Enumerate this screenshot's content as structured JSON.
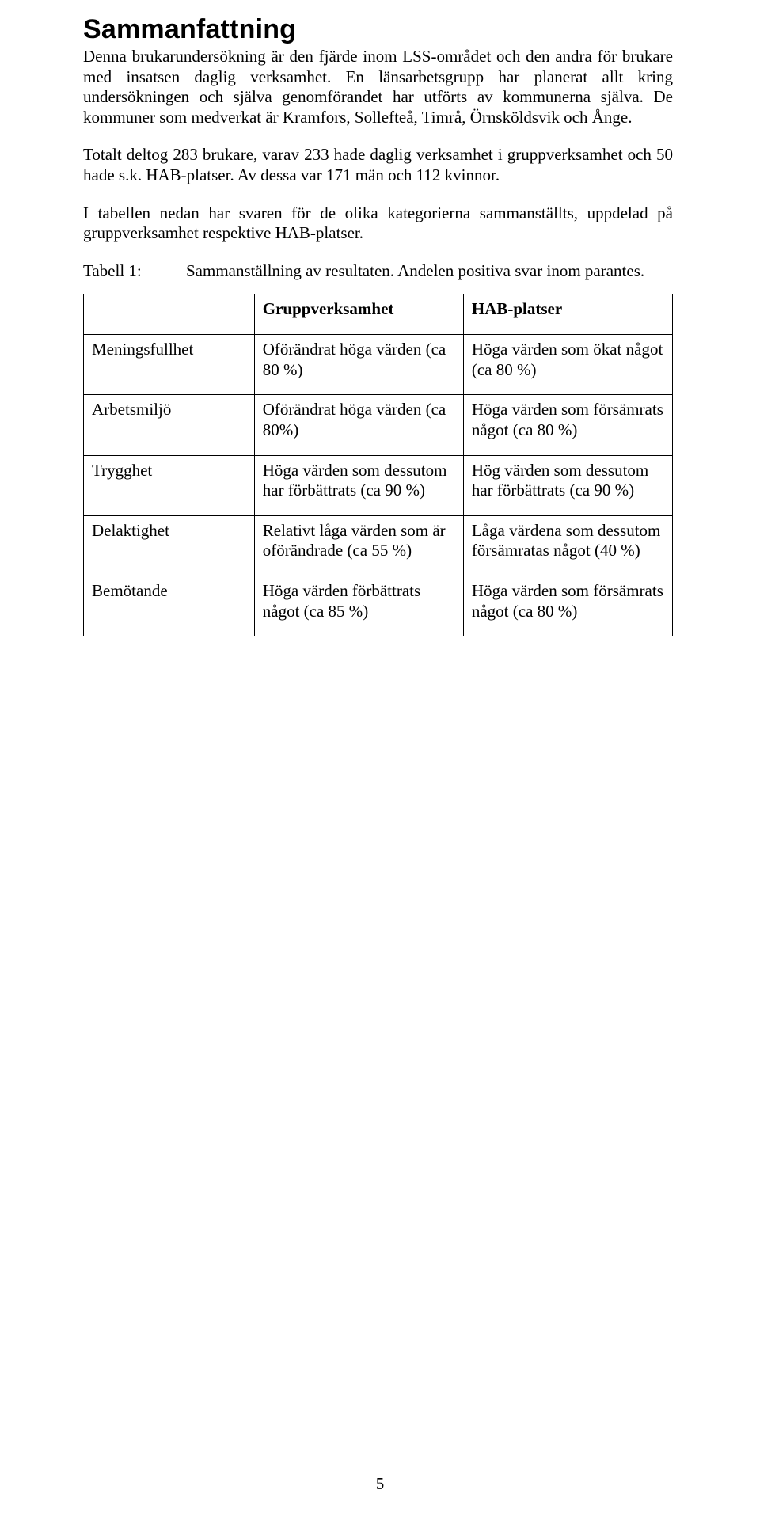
{
  "heading": "Sammanfattning",
  "paragraphs": {
    "p1": "Denna brukarundersökning är den fjärde inom LSS-området och den andra för brukare med insatsen daglig verksamhet. En länsarbetsgrupp har planerat allt kring undersökningen och själva genomförandet har utförts av kommunerna själva. De kommuner som medverkat är Kramfors, Sollefteå, Timrå, Örnsköldsvik och Ånge.",
    "p2": "Totalt deltog 283 brukare, varav 233 hade daglig verksamhet i gruppverksamhet och 50 hade s.k. HAB-platser. Av dessa var 171 män och 112 kvinnor.",
    "p3": "I tabellen nedan har svaren för de olika kategorierna sammanställts, uppdelad på gruppverksamhet respektive HAB-platser."
  },
  "table_caption": {
    "label": "Tabell 1:",
    "text": "Sammanställning av resultaten. Andelen positiva svar inom parantes."
  },
  "table": {
    "columns": [
      "",
      "Gruppverksamhet",
      "HAB-platser"
    ],
    "rows": [
      {
        "label": "Meningsfullhet",
        "grupp": "Oförändrat höga värden (ca 80 %)",
        "hab": "Höga värden som ökat något (ca 80 %)"
      },
      {
        "label": "Arbetsmiljö",
        "grupp": "Oförändrat höga värden (ca 80%)",
        "hab": "Höga värden som försämrats något (ca 80 %)"
      },
      {
        "label": "Trygghet",
        "grupp": "Höga värden som dessutom har förbättrats (ca 90 %)",
        "hab": "Hög värden som dessutom har förbättrats (ca 90 %)"
      },
      {
        "label": "Delaktighet",
        "grupp": "Relativt låga värden som är oförändrade (ca 55 %)",
        "hab": "Låga värdena som dessutom försämratas något (40 %)"
      },
      {
        "label": "Bemötande",
        "grupp": "Höga värden förbättrats något (ca 85 %)",
        "hab": "Höga värden som försämrats något (ca 80 %)"
      }
    ]
  },
  "page_number": "5"
}
